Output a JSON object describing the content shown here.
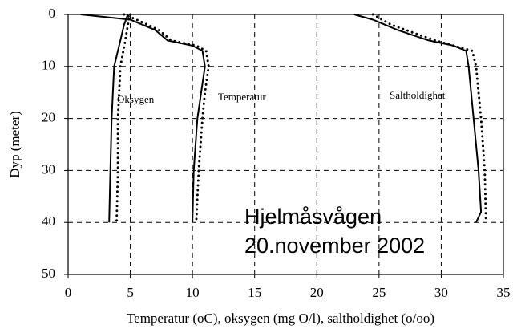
{
  "chart_data": {
    "type": "profile",
    "xlabel": "Temperatur (oC), oksygen (mg O/l), saltholdighet (o/oo)",
    "ylabel": "Dyp (meter)",
    "xlim": [
      0,
      35
    ],
    "xticks": [
      0,
      5,
      10,
      15,
      20,
      25,
      30,
      35
    ],
    "ylim": [
      0,
      50
    ],
    "yticks": [
      0,
      10,
      20,
      30,
      40,
      50
    ],
    "y_inverted": true,
    "grid": true,
    "annotations": [
      "Oksygen",
      "Temperatur",
      "Saltholdighet",
      "Hjelmåsvågen",
      "20.november 2002"
    ],
    "series": [
      {
        "color": "#000000",
        "style": "solid",
        "depths": [
          0,
          2,
          5,
          10,
          20,
          30,
          40
        ],
        "values": [
          4.8,
          4.5,
          4.2,
          3.7,
          3.5,
          3.4,
          3.3
        ]
      },
      {
        "color": "#000000",
        "style": "dotted",
        "depths": [
          0,
          2,
          5,
          10,
          20,
          30,
          40
        ],
        "values": [
          5.0,
          4.8,
          4.6,
          4.2,
          4.0,
          4.0,
          3.9
        ]
      },
      {
        "color": "#000000",
        "style": "solid",
        "depths": [
          0,
          1,
          3,
          5,
          6,
          7,
          10,
          15,
          20,
          30,
          40
        ],
        "values": [
          1,
          5,
          7,
          8,
          10,
          10.8,
          11,
          10.7,
          10.4,
          10.1,
          10
        ]
      },
      {
        "color": "#000000",
        "style": "dotted",
        "depths": [
          0,
          1,
          3,
          5,
          6,
          7,
          10,
          15,
          20,
          30,
          40
        ],
        "values": [
          4.5,
          5.5,
          7.3,
          8.3,
          10.3,
          11.1,
          11.3,
          11,
          10.8,
          10.5,
          10.3
        ]
      },
      {
        "color": "#000000",
        "style": "solid",
        "depths": [
          0,
          1,
          3,
          5,
          6,
          7,
          10,
          20,
          30,
          38,
          40
        ],
        "values": [
          23,
          24.5,
          26.5,
          29,
          31,
          32,
          32.2,
          32.6,
          33,
          33.2,
          32.8
        ]
      },
      {
        "color": "#000000",
        "style": "dotted",
        "depths": [
          0,
          2,
          5,
          7,
          10,
          20,
          30,
          40
        ],
        "values": [
          24.5,
          26,
          29.5,
          32.5,
          32.8,
          33.2,
          33.5,
          33.6
        ]
      }
    ]
  }
}
